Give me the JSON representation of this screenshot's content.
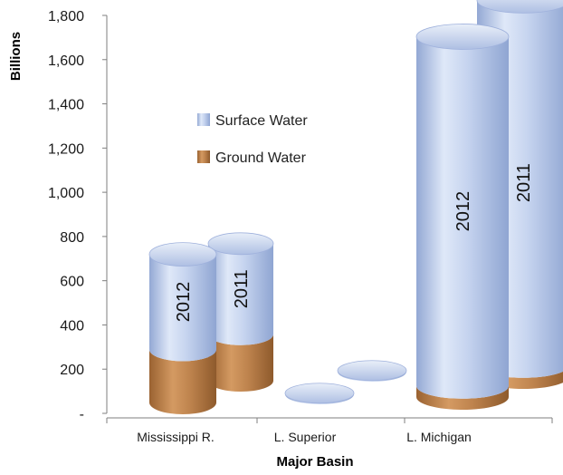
{
  "chart_data": {
    "type": "bar",
    "stacked": true,
    "style": "3d-cylinder",
    "ylabel": "Billions",
    "xlabel": "Major Basin",
    "ylim": [
      0,
      1800
    ],
    "y_ticks": [
      "-",
      "200",
      "400",
      "600",
      "800",
      "1,000",
      "1,200",
      "1,400",
      "1,600",
      "1,800"
    ],
    "categories": [
      "Mississippi R.",
      "L. Superior",
      "L. Michigan"
    ],
    "legend": {
      "position": "upper-left",
      "items": [
        "Surface Water",
        "Ground Water"
      ]
    },
    "bars": [
      {
        "category": "Mississippi R.",
        "label": "2012",
        "ground_water": 240,
        "surface_water": 430
      },
      {
        "category": "Mississippi R.",
        "label": "2011",
        "ground_water": 210,
        "surface_water": 410
      },
      {
        "category": "L. Superior",
        "label": "",
        "ground_water": 0,
        "surface_water": 5
      },
      {
        "category": "L. Superior",
        "label": "",
        "ground_water": 0,
        "surface_water": 5
      },
      {
        "category": "L. Michigan",
        "label": "2012",
        "ground_water": 50,
        "surface_water": 1580
      },
      {
        "category": "L. Michigan",
        "label": "2011",
        "ground_water": 50,
        "surface_water": 1650
      }
    ],
    "colors": {
      "surface_water": "#c9d6ef",
      "ground_water": "#c48a55"
    }
  }
}
